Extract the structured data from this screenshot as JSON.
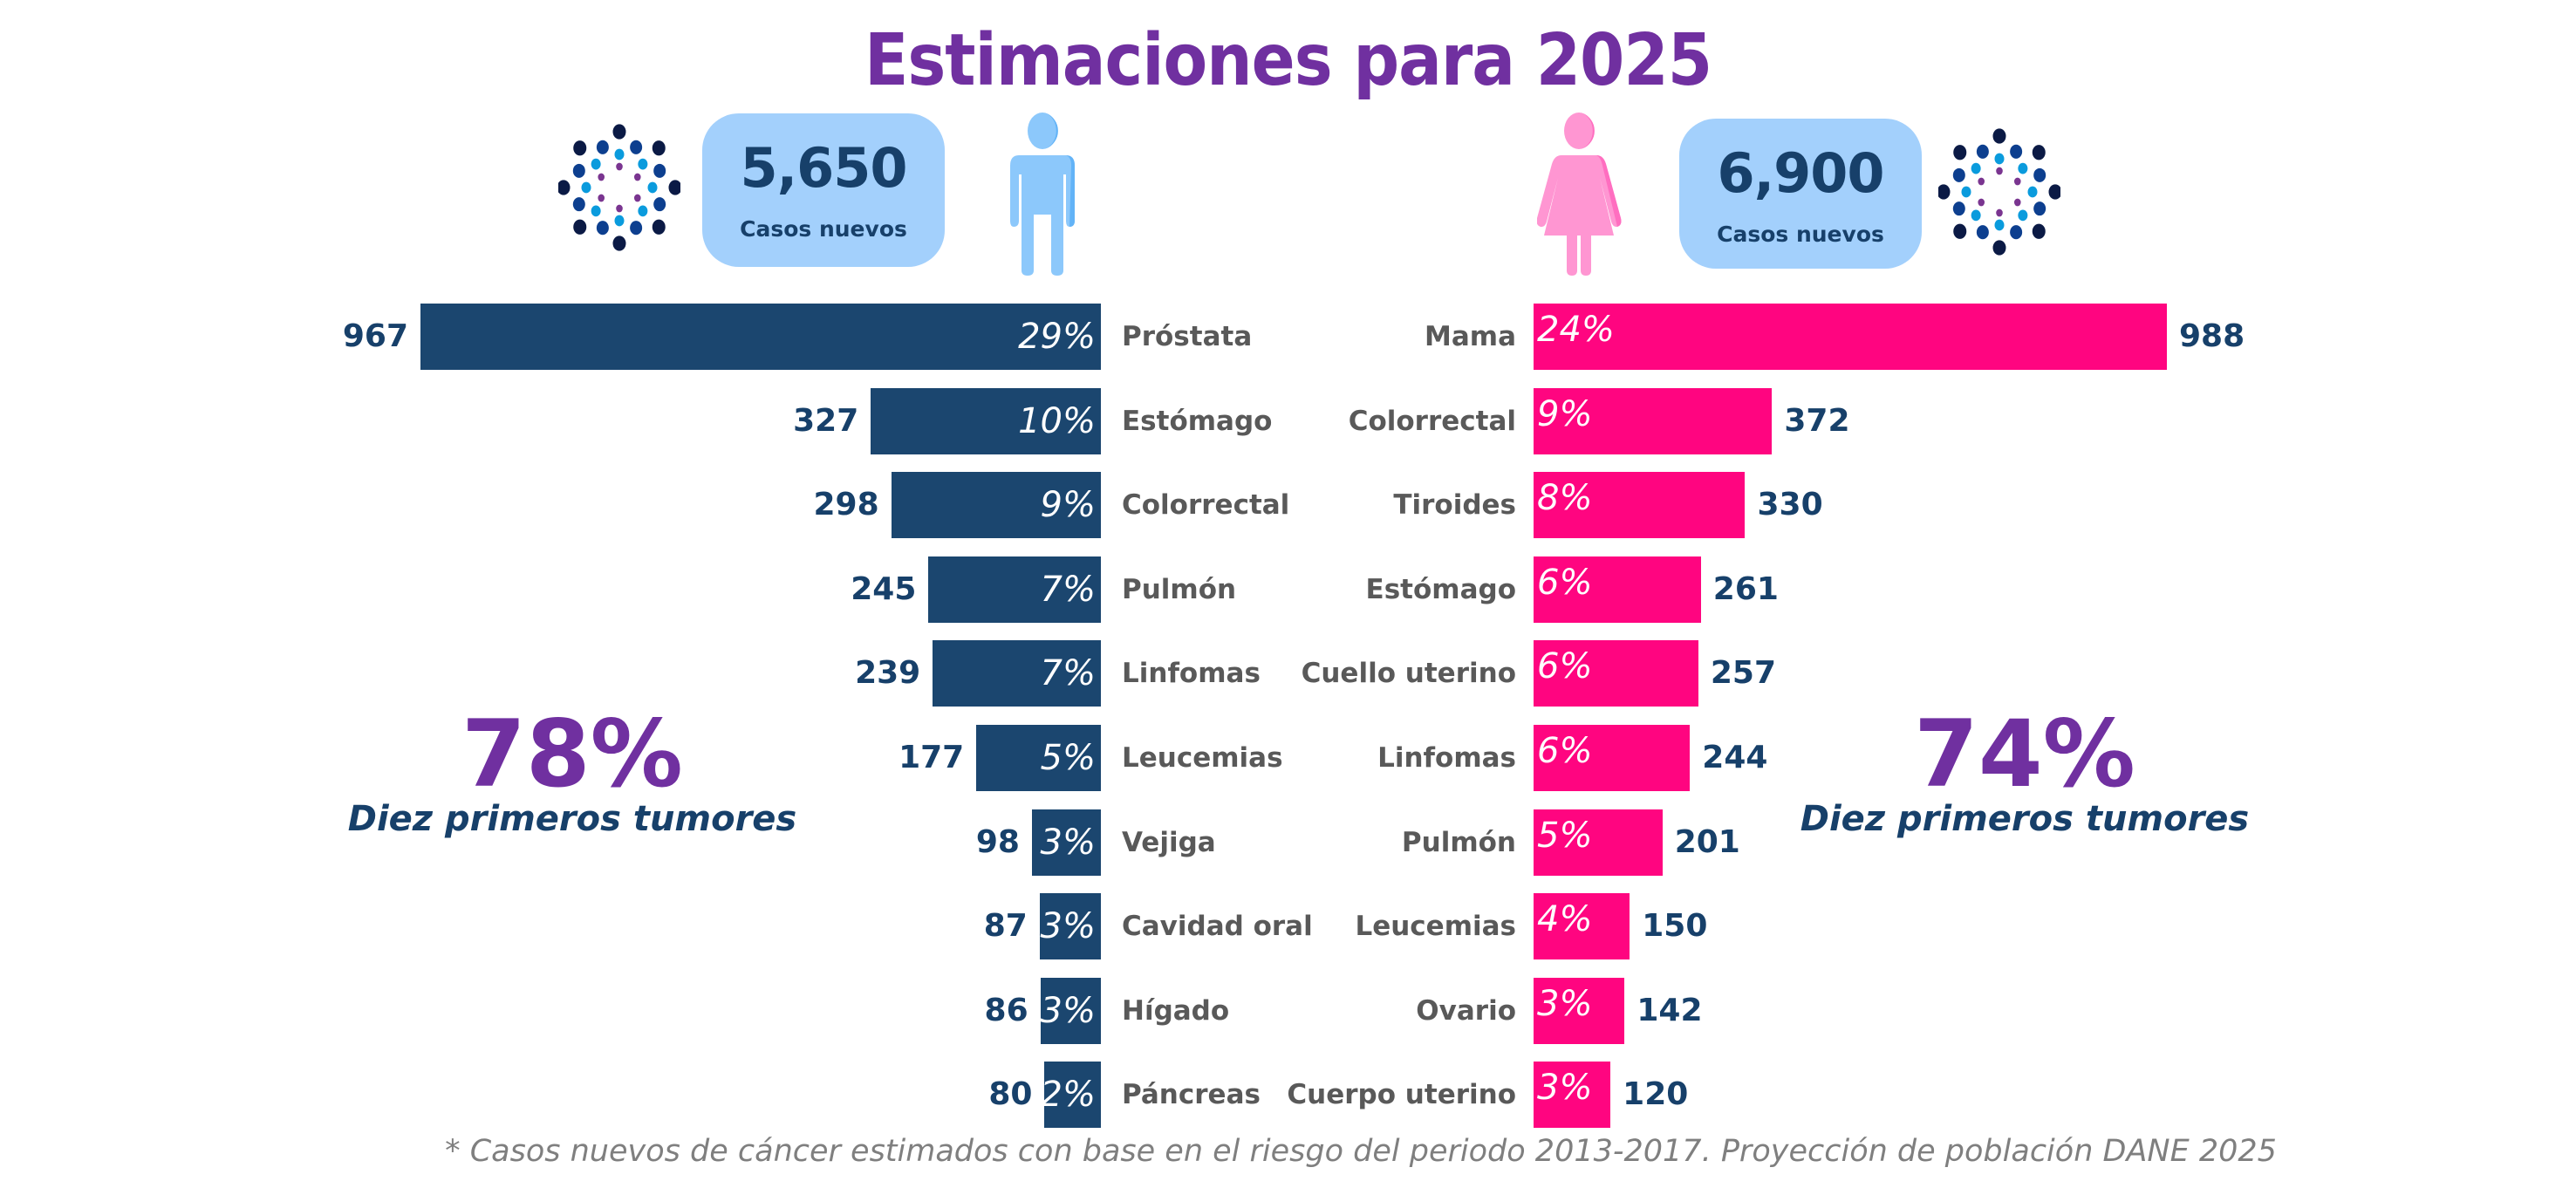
{
  "title": "Estimaciones para 2025",
  "colors": {
    "title": "#7030A0",
    "male_bar": "#1B466F",
    "female_bar": "#FF0580",
    "case_box": "#A3D0FC",
    "value_text": "#17406A",
    "category_text": "#595959"
  },
  "men": {
    "icon": "male-figure-icon",
    "cases_value": "5,650",
    "cases_label": "Casos nuevos",
    "top_share": "78%",
    "top_share_label": "Diez primeros tumores"
  },
  "women": {
    "icon": "female-figure-icon",
    "cases_value": "6,900",
    "cases_label": "Casos nuevos",
    "top_share": "74%",
    "top_share_label": "Diez primeros tumores"
  },
  "decor_icon": "dot-burst-icon",
  "chart_data": [
    {
      "type": "bar",
      "orientation": "horizontal",
      "direction": "leftward",
      "series": "Hombres",
      "categories": [
        "Próstata",
        "Estómago",
        "Colorrectal",
        "Pulmón",
        "Linfomas",
        "Leucemias",
        "Vejiga",
        "Cavidad oral",
        "Hígado",
        "Páncreas"
      ],
      "values": [
        967,
        327,
        298,
        245,
        239,
        177,
        98,
        87,
        86,
        80
      ],
      "value_labels": [
        "967",
        "327",
        "298",
        "245",
        "239",
        "177",
        "98",
        "87",
        "86",
        "80"
      ],
      "percent_labels": [
        "29%",
        "10%",
        "9%",
        "7%",
        "7%",
        "5%",
        "3%",
        "3%",
        "3%",
        "2%"
      ]
    },
    {
      "type": "bar",
      "orientation": "horizontal",
      "direction": "rightward",
      "series": "Mujeres",
      "categories": [
        "Mama",
        "Colorrectal",
        "Tiroides",
        "Estómago",
        "Cuello uterino",
        "Linfomas",
        "Pulmón",
        "Leucemias",
        "Ovario",
        "Cuerpo uterino"
      ],
      "values": [
        988,
        372,
        330,
        261,
        257,
        244,
        201,
        150,
        142,
        120
      ],
      "value_labels": [
        "988",
        "372",
        "330",
        "261",
        "257",
        "244",
        "201",
        "150",
        "142",
        "120"
      ],
      "percent_labels": [
        "24%",
        "9%",
        "8%",
        "6%",
        "6%",
        "6%",
        "5%",
        "4%",
        "3%",
        "3%"
      ]
    }
  ],
  "footnote": "* Casos nuevos de cáncer estimados con base en el riesgo del periodo 2013-2017. Proyección de población DANE 2025"
}
